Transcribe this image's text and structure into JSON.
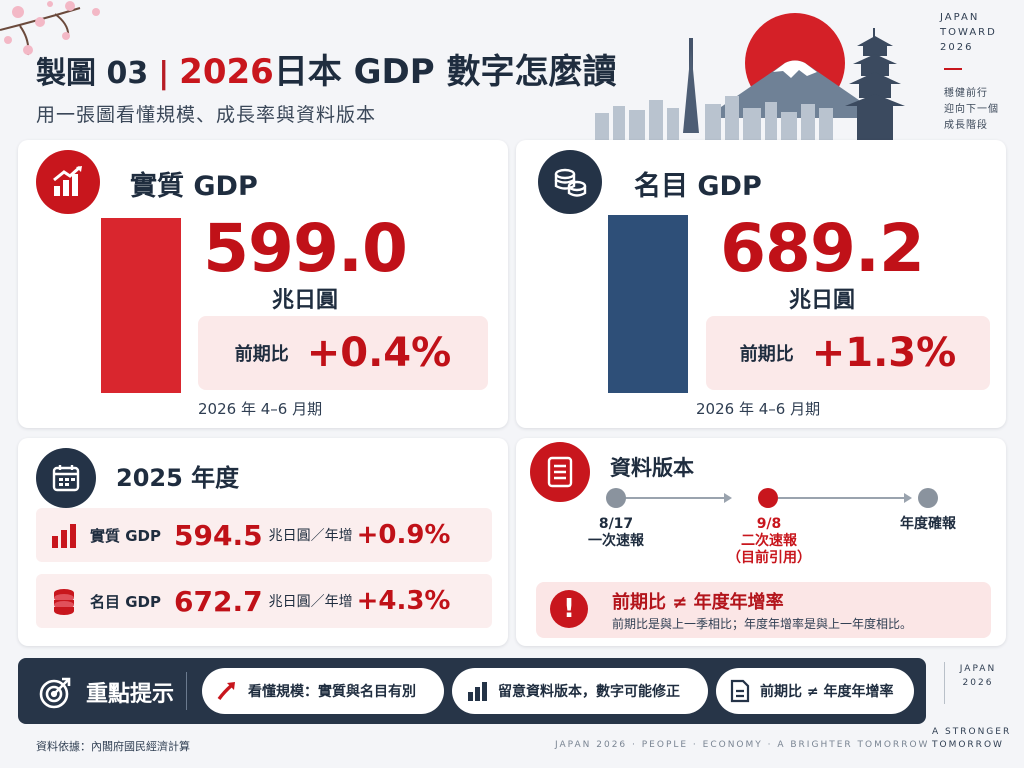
{
  "header": {
    "title_prefix": "製圖 03",
    "title_year": "2026",
    "title_rest": "日本 GDP 數字怎麼讀",
    "subtitle": "用一張圖看懂規模、成長率與資料版本"
  },
  "brand": {
    "line1": "JAPAN",
    "line2": "TOWARD",
    "line3": "2026",
    "motto1": "穩健前行",
    "motto2": "迎向下一個",
    "motto3": "成長階段"
  },
  "real_gdp": {
    "title": "實質 GDP",
    "value": "599.0",
    "unit": "兆日圓",
    "change_label": "前期比",
    "change_value": "+0.4%",
    "period": "2026 年 4–6 月期"
  },
  "nominal_gdp": {
    "title": "名目 GDP",
    "value": "689.2",
    "unit": "兆日圓",
    "change_label": "前期比",
    "change_value": "+1.3%",
    "period": "2026 年 4–6 月期"
  },
  "fiscal_year": {
    "title": "2025 年度",
    "rows": [
      {
        "name": "實質 GDP",
        "value": "594.5",
        "unit": "兆日圓／年增",
        "growth": "+0.9%"
      },
      {
        "name": "名目 GDP",
        "value": "672.7",
        "unit": "兆日圓／年增",
        "growth": "+4.3%"
      }
    ]
  },
  "data_version": {
    "title": "資料版本",
    "steps": [
      {
        "line1": "8/17",
        "line2": "一次速報",
        "line3": ""
      },
      {
        "line1": "9/8",
        "line2": "二次速報",
        "line3": "（目前引用）"
      },
      {
        "line1": "年度確報",
        "line2": "",
        "line3": ""
      }
    ],
    "warning_title": "前期比 ≠ 年度年增率",
    "warning_text": "前期比是與上一季相比；年度年增率是與上一年度相比。"
  },
  "key_points": {
    "title": "重點提示",
    "items": [
      "看懂規模：實質與名目有別",
      "留意資料版本，數字可能修正",
      "前期比 ≠ 年度年增率"
    ]
  },
  "footer": {
    "source": "資料依據：內閣府國民經濟計算",
    "tagline": "JAPAN 2026 · PEOPLE · ECONOMY · A BRIGHTER TOMORROW",
    "side_brand_1": "JAPAN",
    "side_brand_2": "2026",
    "stronger_1": "A STRONGER",
    "stronger_2": "TOMORROW"
  },
  "colors": {
    "accent_red": "#c8161d",
    "navy": "#243347",
    "blue_bar": "#2e4f78"
  }
}
